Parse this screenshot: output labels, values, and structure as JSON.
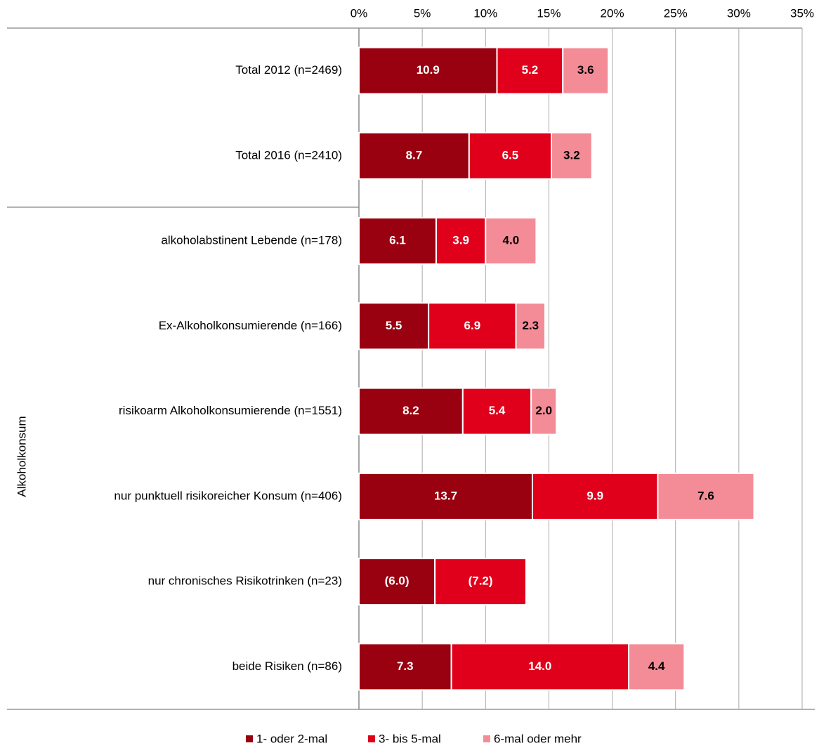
{
  "chart_data": {
    "type": "stacked_barh",
    "group_label": "Alkoholkonsum",
    "categories": [
      "Total 2012 (n=2469)",
      "Total 2016 (n=2410)",
      "alkoholabstinent Lebende (n=178)",
      "Ex-Alkoholkonsumierende (n=166)",
      "risikoarm Alkoholkonsumierende (n=1551)",
      "nur punktuell risikoreicher Konsum (n=406)",
      "nur chronisches Risikotrinken (n=23)",
      "beide Risiken (n=86)"
    ],
    "series": [
      {
        "name": "1- oder 2-mal",
        "color": "#990010",
        "values": [
          10.9,
          8.7,
          6.1,
          5.5,
          8.2,
          13.7,
          6.0,
          7.3
        ],
        "value_labels": [
          "10.9",
          "8.7",
          "6.1",
          "5.5",
          "8.2",
          "13.7",
          "(6.0)",
          "7.3"
        ]
      },
      {
        "name": "3- bis 5-mal",
        "color": "#e0001b",
        "values": [
          5.2,
          6.5,
          3.9,
          6.9,
          5.4,
          9.9,
          7.2,
          14.0
        ],
        "value_labels": [
          "5.2",
          "6.5",
          "3.9",
          "6.9",
          "5.4",
          "9.9",
          "(7.2)",
          "14.0"
        ]
      },
      {
        "name": "6-mal oder mehr",
        "color": "#f48c97",
        "values": [
          3.6,
          3.2,
          4.0,
          2.3,
          2.0,
          7.6,
          null,
          4.4
        ],
        "value_labels": [
          "3.6",
          "3.2",
          "4.0",
          "2.3",
          "2.0",
          "7.6",
          null,
          "4.4"
        ]
      }
    ],
    "xlim": [
      0,
      35
    ],
    "xticks": [
      {
        "value": 0,
        "label": "0%"
      },
      {
        "value": 5,
        "label": "5%"
      },
      {
        "value": 10,
        "label": "10%"
      },
      {
        "value": 15,
        "label": "15%"
      },
      {
        "value": 20,
        "label": "20%"
      },
      {
        "value": 25,
        "label": "25%"
      },
      {
        "value": 30,
        "label": "30%"
      },
      {
        "value": 35,
        "label": "35%"
      }
    ],
    "grid": true,
    "legend": "bottom"
  }
}
